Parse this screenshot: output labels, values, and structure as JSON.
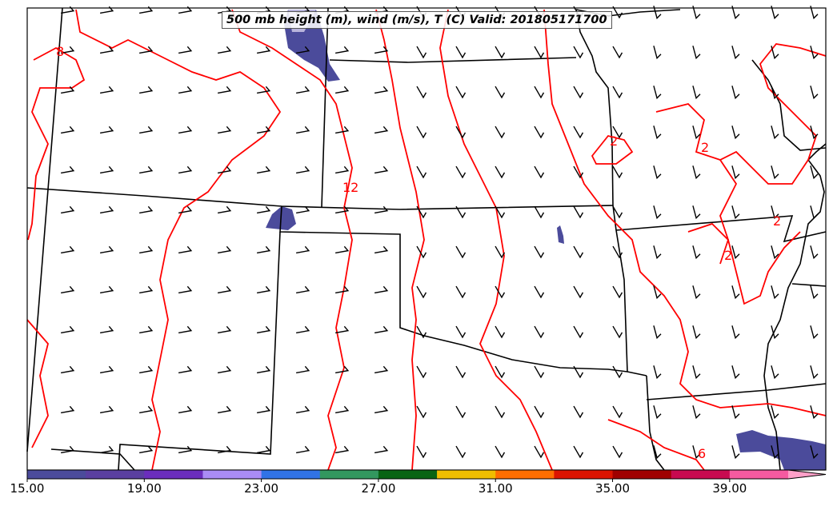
{
  "title": "500 mb height (m), wind (m/s), T (C) Valid: 201805171700",
  "contour_labels": [
    "8",
    "12",
    "2",
    "2",
    "2",
    "2",
    "6"
  ],
  "colorbar": {
    "ticks": [
      "15.00",
      "19.00",
      "23.00",
      "27.00",
      "31.00",
      "35.00",
      "39.00"
    ],
    "min": 15,
    "max": 41,
    "step": 2,
    "colors": [
      "#4b4b9b",
      "#5a3fa0",
      "#6b2dbd",
      "#aa8cf5",
      "#3173e6",
      "#33975f",
      "#086414",
      "#f0be00",
      "#ff6e00",
      "#dc1400",
      "#a00000",
      "#c80a50",
      "#f55aa0"
    ],
    "extend_color": "#ffa0c8"
  },
  "colors": {
    "contour": "#ff0000",
    "border": "#000000",
    "shading": "#4b4b9b"
  }
}
